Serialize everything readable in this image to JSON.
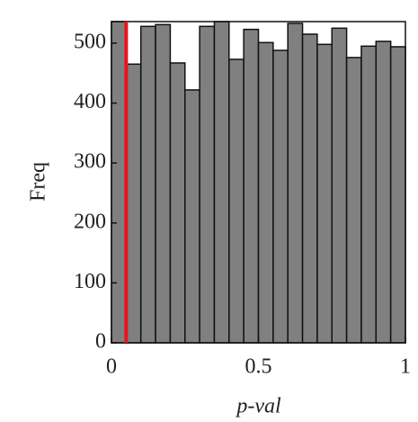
{
  "chart_data": {
    "type": "histogram",
    "xlabel": "p-val",
    "ylabel": "Freq",
    "bins": [
      0,
      0.05,
      0.1,
      0.15,
      0.2,
      0.25,
      0.3,
      0.35,
      0.4,
      0.45,
      0.5,
      0.55,
      0.6,
      0.65,
      0.7,
      0.75,
      0.8,
      0.85,
      0.9,
      0.95,
      1
    ],
    "values": [
      536,
      465,
      528,
      531,
      467,
      422,
      528,
      536,
      473,
      523,
      501,
      488,
      533,
      515,
      498,
      525,
      476,
      495,
      503,
      494
    ],
    "color": "#808080",
    "vline": 0.05,
    "vline_color": "#e8141a",
    "xlim": [
      0,
      1
    ],
    "xticks": [
      0,
      0.5,
      1
    ],
    "ylim": [
      0,
      536
    ],
    "yticks": [
      0,
      100,
      200,
      300,
      400,
      500
    ]
  }
}
